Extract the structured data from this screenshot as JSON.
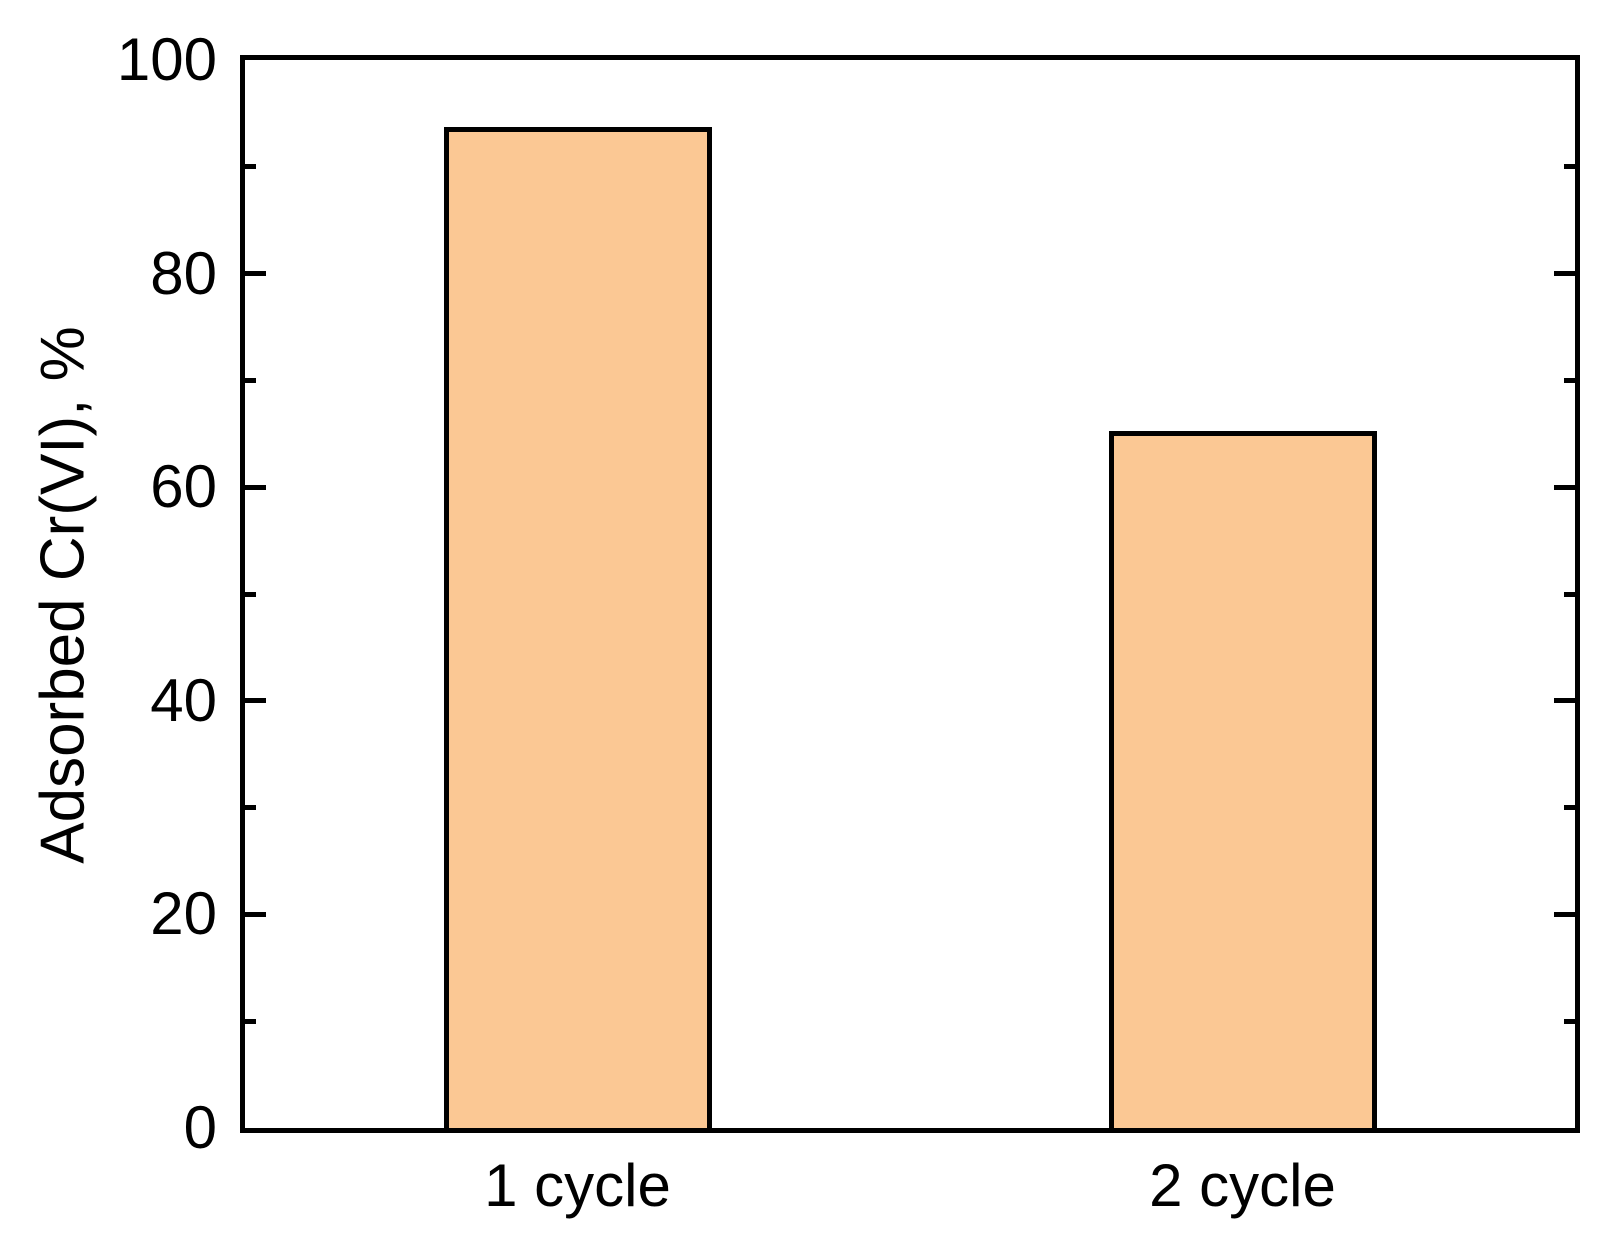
{
  "chart_data": {
    "type": "bar",
    "title": "",
    "categories": [
      "1 cycle",
      "2 cycle"
    ],
    "values": [
      93.7,
      65.3
    ],
    "xlabel": "",
    "ylabel": "Adsorbed Cr(VI), %",
    "ylim": [
      0,
      100
    ],
    "yticks_major": [
      0,
      20,
      40,
      60,
      80,
      100
    ],
    "yticks_minor": [
      10,
      30,
      50,
      70,
      90
    ],
    "grid": false,
    "legend_position": "none",
    "bar_fill_color": "#FBC894",
    "bar_border_color": "#000000",
    "axis_color": "#000000",
    "background_color": "#FFFFFF",
    "tick_direction": "in",
    "mirror_right_axis_ticks": true
  }
}
